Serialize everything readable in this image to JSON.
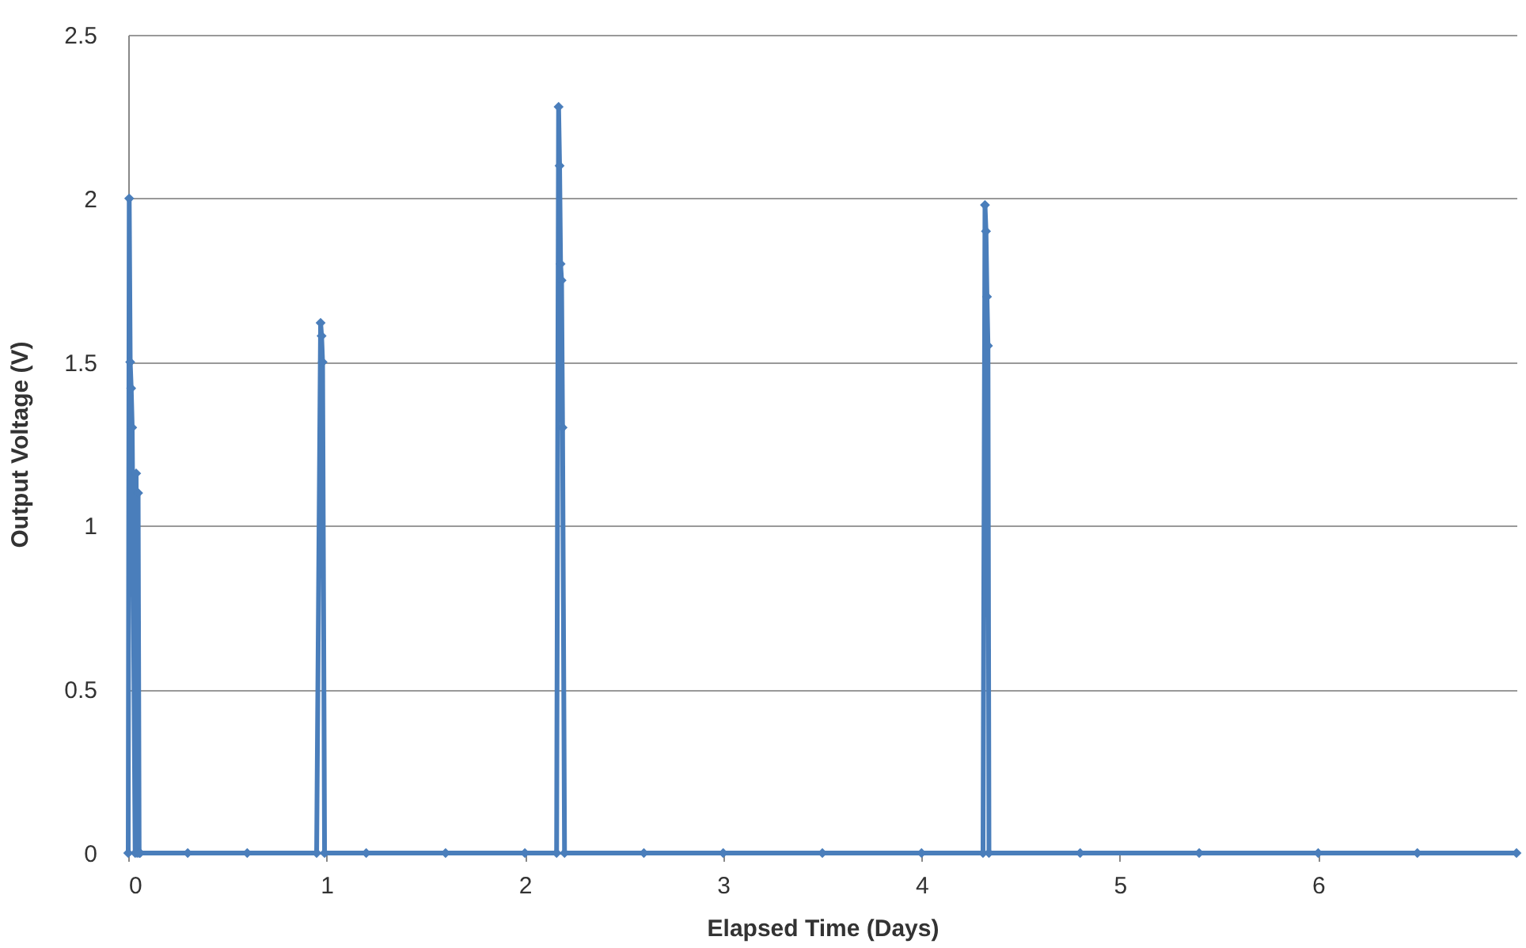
{
  "chart_data": {
    "type": "line",
    "xlabel": "Elapsed Time (Days)",
    "ylabel": "Output Voltage (V)",
    "xlim": [
      0,
      7
    ],
    "xticks": [
      0,
      1,
      2,
      3,
      4,
      5,
      6
    ],
    "ylim": [
      0,
      2.5
    ],
    "yticks": [
      0,
      0.5,
      1,
      1.5,
      2,
      2.5
    ],
    "grid": "y",
    "marker": "diamond",
    "line_style": "solid",
    "series": [
      {
        "color": "#4a7ebb",
        "x": [
          0,
          0.005,
          0.01,
          0.015,
          0.02,
          0.035,
          0.04,
          0.045,
          0.05,
          0.055,
          0.06,
          0.3,
          0.6,
          0.95,
          0.97,
          0.975,
          0.98,
          0.99,
          1.2,
          1.6,
          2.0,
          2.16,
          2.17,
          2.175,
          2.18,
          2.185,
          2.19,
          2.2,
          2.6,
          3.0,
          3.5,
          4.0,
          4.31,
          4.32,
          4.325,
          4.33,
          4.335,
          4.34,
          4.8,
          5.4,
          6.0,
          6.5,
          7.0
        ],
        "values": [
          0,
          2.0,
          1.5,
          1.42,
          1.3,
          0,
          1.16,
          0,
          1.1,
          0,
          0,
          0,
          0,
          0,
          1.62,
          1.58,
          1.5,
          0,
          0,
          0,
          0,
          0,
          2.28,
          2.1,
          1.8,
          1.75,
          1.3,
          0,
          0,
          0,
          0,
          0,
          0,
          1.98,
          1.9,
          1.7,
          1.55,
          0,
          0,
          0,
          0,
          0,
          0
        ]
      }
    ]
  }
}
